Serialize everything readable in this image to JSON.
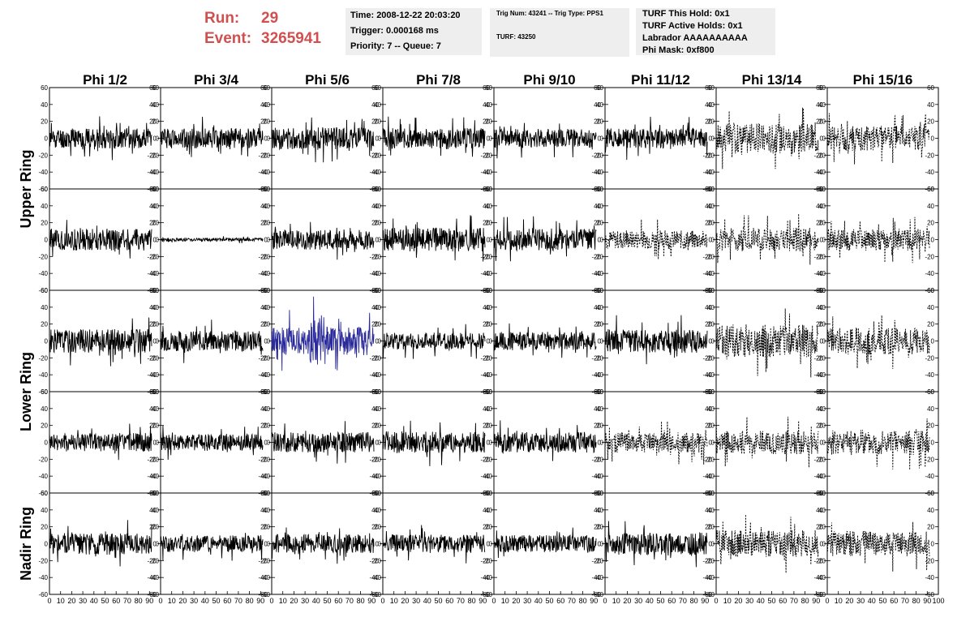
{
  "header": {
    "run_label": "Run:",
    "run_value": "29",
    "event_label": "Event:",
    "event_value": "3265941"
  },
  "info_panels": [
    [
      "Time: 2008-12-22 20:03:20",
      "Trigger: 0.000168 ms",
      "Priority: 7 -- Queue: 7"
    ],
    [
      "Trig Num: 43241 -- Trig Type: PPS1",
      "TURF: 43250"
    ],
    [
      "TURF This Hold: 0x1",
      "TURF Active Holds: 0x1",
      "Labrador AAAAAAAAAA",
      "Phi Mask: 0xf800"
    ]
  ],
  "chart_data": {
    "type": "line",
    "columns": [
      "Phi 1/2",
      "Phi 3/4",
      "Phi 5/6",
      "Phi 7/8",
      "Phi 9/10",
      "Phi 11/12",
      "Phi 13/14",
      "Phi 15/16"
    ],
    "ring_labels": [
      {
        "text": "Upper Ring",
        "rows": [
          0,
          1
        ]
      },
      {
        "text": "Lower Ring",
        "rows": [
          2,
          3
        ]
      },
      {
        "text": "Nadir Ring",
        "rows": [
          4,
          4
        ]
      }
    ],
    "xlim": [
      0,
      100
    ],
    "ylim": [
      -60,
      60
    ],
    "x_ticks": [
      0,
      10,
      20,
      30,
      40,
      50,
      60,
      70,
      80,
      90
    ],
    "x_ticks_last": [
      0,
      10,
      20,
      30,
      40,
      50,
      60,
      70,
      80,
      90,
      100
    ],
    "y_ticks": [
      60,
      40,
      20,
      0,
      -20,
      -40,
      -60
    ],
    "waveform_x_range": [
      0,
      92
    ],
    "samples": 260,
    "highlight_color": "#2a2a9a",
    "trace_color": "#000000",
    "panels": [
      [
        {
          "amp": 12,
          "seed": 11,
          "style": "solid"
        },
        {
          "amp": 12,
          "seed": 12,
          "style": "solid"
        },
        {
          "amp": 13,
          "seed": 13,
          "style": "solid"
        },
        {
          "amp": 12,
          "seed": 14,
          "style": "solid"
        },
        {
          "amp": 11,
          "seed": 15,
          "style": "solid"
        },
        {
          "amp": 12,
          "seed": 16,
          "style": "solid"
        },
        {
          "amp": 18,
          "seed": 17,
          "style": "dashed"
        },
        {
          "amp": 15,
          "seed": 18,
          "style": "dashed"
        }
      ],
      [
        {
          "amp": 13,
          "seed": 21,
          "style": "solid"
        },
        {
          "amp": 2,
          "seed": 22,
          "style": "solid"
        },
        {
          "amp": 12,
          "seed": 23,
          "style": "solid"
        },
        {
          "amp": 14,
          "seed": 24,
          "style": "solid"
        },
        {
          "amp": 13,
          "seed": 25,
          "style": "solid"
        },
        {
          "amp": 11,
          "seed": 26,
          "style": "dashed"
        },
        {
          "amp": 14,
          "seed": 27,
          "style": "dashed"
        },
        {
          "amp": 13,
          "seed": 28,
          "style": "dashed"
        }
      ],
      [
        {
          "amp": 14,
          "seed": 31,
          "style": "solid"
        },
        {
          "amp": 12,
          "seed": 32,
          "style": "solid"
        },
        {
          "amp": 17,
          "seed": 33,
          "style": "solid",
          "highlight": true
        },
        {
          "amp": 10,
          "seed": 34,
          "style": "solid"
        },
        {
          "amp": 11,
          "seed": 35,
          "style": "solid"
        },
        {
          "amp": 14,
          "seed": 36,
          "style": "solid"
        },
        {
          "amp": 20,
          "seed": 37,
          "style": "dashed"
        },
        {
          "amp": 16,
          "seed": 38,
          "style": "dashed"
        }
      ],
      [
        {
          "amp": 11,
          "seed": 41,
          "style": "solid"
        },
        {
          "amp": 10,
          "seed": 42,
          "style": "solid"
        },
        {
          "amp": 12,
          "seed": 43,
          "style": "solid"
        },
        {
          "amp": 13,
          "seed": 44,
          "style": "solid"
        },
        {
          "amp": 12,
          "seed": 45,
          "style": "solid"
        },
        {
          "amp": 12,
          "seed": 46,
          "style": "dashed"
        },
        {
          "amp": 14,
          "seed": 47,
          "style": "dashed"
        },
        {
          "amp": 15,
          "seed": 48,
          "style": "dashed"
        }
      ],
      [
        {
          "amp": 13,
          "seed": 51,
          "style": "solid"
        },
        {
          "amp": 10,
          "seed": 52,
          "style": "solid"
        },
        {
          "amp": 11,
          "seed": 53,
          "style": "solid"
        },
        {
          "amp": 11,
          "seed": 54,
          "style": "solid"
        },
        {
          "amp": 10,
          "seed": 55,
          "style": "solid"
        },
        {
          "amp": 13,
          "seed": 56,
          "style": "solid"
        },
        {
          "amp": 16,
          "seed": 57,
          "style": "dashed"
        },
        {
          "amp": 15,
          "seed": 58,
          "style": "dashed"
        }
      ]
    ]
  }
}
